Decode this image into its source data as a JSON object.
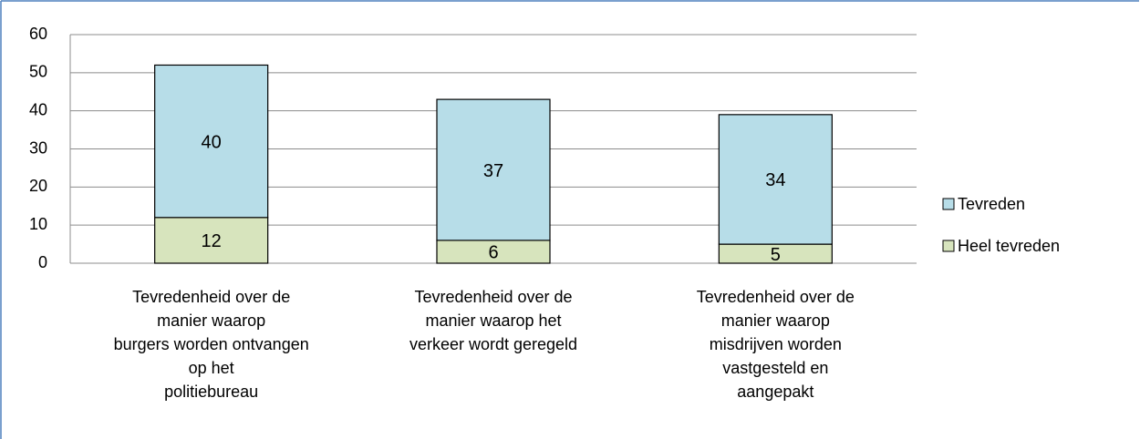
{
  "chart_data": {
    "type": "stacked_bar",
    "categories": [
      "Tevredenheid over de\nmanier waarop\nburgers worden ontvangen\nop het\npolitiebureau",
      "Tevredenheid over de\nmanier waarop het\nverkeer wordt geregeld",
      "Tevredenheid over de\nmanier waarop\nmisdrijven worden\nvastgesteld en\naangepakt"
    ],
    "series": [
      {
        "name": "Heel tevreden",
        "color": "#d7e4bd",
        "values": [
          12,
          6,
          5
        ]
      },
      {
        "name": "Tevreden",
        "color": "#b7dde8",
        "values": [
          40,
          37,
          34
        ]
      }
    ],
    "ylim": [
      0,
      60
    ],
    "yticks": [
      0,
      10,
      20,
      30,
      40,
      50,
      60
    ],
    "grid": true,
    "legend": "right"
  }
}
